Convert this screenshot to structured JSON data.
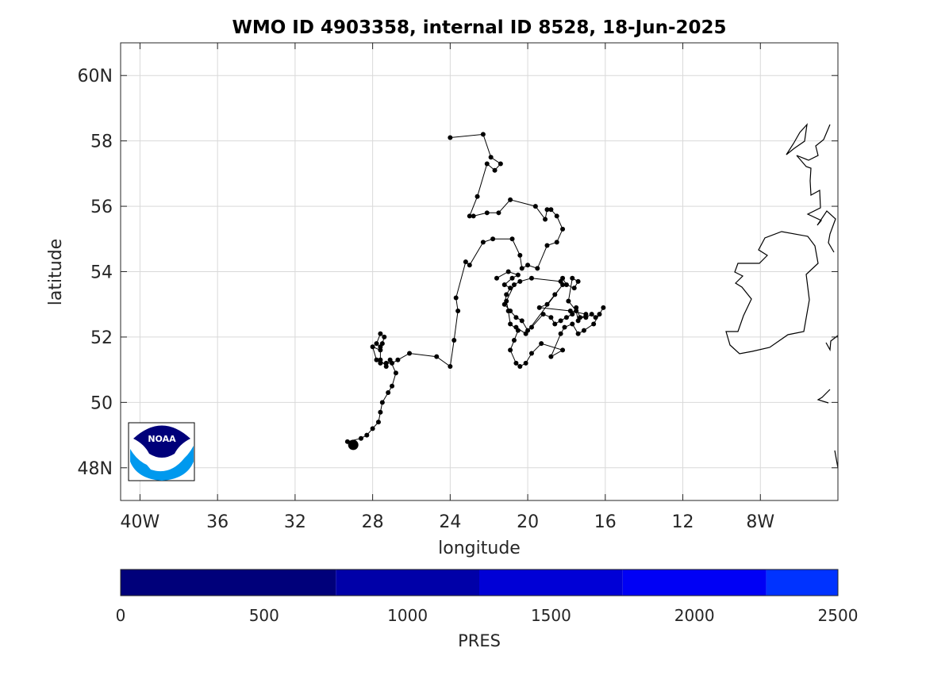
{
  "title": "WMO ID 4903358, internal ID 8528, 18-Jun-2025",
  "map": {
    "xlabel": "longitude",
    "ylabel": "latitude",
    "xlim": [
      -41,
      -4
    ],
    "ylim": [
      47,
      61
    ],
    "x_ticks": [
      -40,
      -36,
      -32,
      -28,
      -24,
      -20,
      -16,
      -12,
      -8
    ],
    "x_tick_labels": [
      "40W",
      "36",
      "32",
      "28",
      "24",
      "20",
      "16",
      "12",
      "8W"
    ],
    "y_ticks": [
      48,
      50,
      52,
      54,
      56,
      58,
      60
    ],
    "y_tick_labels": [
      "48N",
      "50",
      "52",
      "54",
      "56",
      "58",
      "60N"
    ],
    "grid": true,
    "coastline_color": "#000000",
    "track_color": "#000000",
    "start_marker_color": "#000000"
  },
  "chart_data": {
    "type": "scatter",
    "xlabel": "longitude",
    "ylabel": "latitude",
    "xlim": [
      -41,
      -4
    ],
    "ylim": [
      47,
      61
    ],
    "grid": true,
    "track": [
      [
        -29.0,
        48.7
      ],
      [
        -29.3,
        48.8
      ],
      [
        -28.6,
        48.9
      ],
      [
        -28.3,
        49.0
      ],
      [
        -28.0,
        49.2
      ],
      [
        -27.7,
        49.4
      ],
      [
        -27.6,
        49.7
      ],
      [
        -27.5,
        50.0
      ],
      [
        -27.2,
        50.3
      ],
      [
        -27.0,
        50.5
      ],
      [
        -26.8,
        50.9
      ],
      [
        -27.1,
        51.3
      ],
      [
        -27.3,
        51.1
      ],
      [
        -27.6,
        51.3
      ],
      [
        -27.6,
        51.7
      ],
      [
        -27.8,
        51.8
      ],
      [
        -27.6,
        52.1
      ],
      [
        -27.4,
        52.0
      ],
      [
        -27.5,
        51.8
      ],
      [
        -27.6,
        51.6
      ],
      [
        -28.0,
        51.7
      ],
      [
        -27.8,
        51.3
      ],
      [
        -27.6,
        51.2
      ],
      [
        -27.3,
        51.2
      ],
      [
        -27.0,
        51.2
      ],
      [
        -26.7,
        51.3
      ],
      [
        -26.1,
        51.5
      ],
      [
        -24.7,
        51.4
      ],
      [
        -24.0,
        51.1
      ],
      [
        -23.8,
        51.9
      ],
      [
        -23.6,
        52.8
      ],
      [
        -23.7,
        53.2
      ],
      [
        -23.2,
        54.3
      ],
      [
        -23.0,
        54.2
      ],
      [
        -22.3,
        54.9
      ],
      [
        -21.8,
        55.0
      ],
      [
        -20.8,
        55.0
      ],
      [
        -20.4,
        54.5
      ],
      [
        -20.3,
        54.1
      ],
      [
        -20.0,
        54.2
      ],
      [
        -19.5,
        54.1
      ],
      [
        -19.0,
        54.8
      ],
      [
        -18.5,
        54.9
      ],
      [
        -18.2,
        55.3
      ],
      [
        -18.5,
        55.7
      ],
      [
        -18.8,
        55.9
      ],
      [
        -19.0,
        55.9
      ],
      [
        -19.1,
        55.6
      ],
      [
        -19.6,
        56.0
      ],
      [
        -20.9,
        56.2
      ],
      [
        -21.5,
        55.8
      ],
      [
        -22.1,
        55.8
      ],
      [
        -22.8,
        55.7
      ],
      [
        -23.0,
        55.7
      ],
      [
        -22.6,
        56.3
      ],
      [
        -22.1,
        57.3
      ],
      [
        -21.7,
        57.1
      ],
      [
        -21.4,
        57.3
      ],
      [
        -21.9,
        57.5
      ],
      [
        -22.3,
        58.2
      ],
      [
        -24.0,
        58.1
      ]
    ],
    "cluster": [
      [
        -21.6,
        53.8
      ],
      [
        -21.0,
        54.0
      ],
      [
        -20.5,
        53.9
      ],
      [
        -20.8,
        53.8
      ],
      [
        -21.2,
        53.6
      ],
      [
        -20.9,
        53.5
      ],
      [
        -21.1,
        53.3
      ],
      [
        -21.2,
        53.0
      ],
      [
        -20.9,
        52.8
      ],
      [
        -20.6,
        52.6
      ],
      [
        -20.3,
        52.5
      ],
      [
        -20.0,
        52.2
      ],
      [
        -19.8,
        52.3
      ],
      [
        -19.2,
        52.7
      ],
      [
        -18.8,
        52.6
      ],
      [
        -18.6,
        52.4
      ],
      [
        -18.3,
        52.5
      ],
      [
        -18.0,
        52.6
      ],
      [
        -17.7,
        52.7
      ],
      [
        -17.5,
        52.9
      ],
      [
        -17.3,
        52.6
      ],
      [
        -17.0,
        52.6
      ],
      [
        -16.7,
        52.7
      ],
      [
        -16.5,
        52.6
      ],
      [
        -16.3,
        52.7
      ],
      [
        -16.1,
        52.9
      ],
      [
        -16.6,
        52.4
      ],
      [
        -17.1,
        52.2
      ],
      [
        -17.4,
        52.1
      ],
      [
        -17.7,
        52.4
      ],
      [
        -18.1,
        52.3
      ],
      [
        -18.3,
        52.1
      ],
      [
        -18.8,
        51.4
      ],
      [
        -18.2,
        51.6
      ],
      [
        -19.3,
        51.8
      ],
      [
        -19.8,
        51.5
      ],
      [
        -20.1,
        51.2
      ],
      [
        -20.4,
        51.1
      ],
      [
        -20.6,
        51.2
      ],
      [
        -20.9,
        51.6
      ],
      [
        -20.7,
        51.9
      ],
      [
        -20.5,
        52.2
      ],
      [
        -20.9,
        52.4
      ],
      [
        -21.0,
        52.8
      ],
      [
        -21.1,
        53.1
      ],
      [
        -20.7,
        53.6
      ],
      [
        -20.4,
        53.7
      ],
      [
        -19.8,
        53.8
      ],
      [
        -18.3,
        53.7
      ],
      [
        -18.2,
        53.8
      ],
      [
        -18.0,
        53.6
      ],
      [
        -17.6,
        53.5
      ],
      [
        -17.4,
        53.7
      ],
      [
        -17.7,
        53.8
      ],
      [
        -17.9,
        53.1
      ],
      [
        -17.5,
        52.8
      ],
      [
        -17.4,
        52.5
      ],
      [
        -17.0,
        52.7
      ],
      [
        -17.8,
        52.8
      ],
      [
        -19.4,
        52.9
      ],
      [
        -19.0,
        53.0
      ],
      [
        -18.6,
        53.3
      ],
      [
        -18.2,
        53.6
      ],
      [
        -20.1,
        52.1
      ],
      [
        -20.6,
        52.3
      ]
    ],
    "start_position": [
      -29.0,
      48.7
    ],
    "colorbar": {
      "label": "PRES",
      "ticks": [
        0,
        500,
        1000,
        1500,
        2000,
        2500
      ],
      "tick_labels": [
        "0",
        "500",
        "1000",
        "1500",
        "2000",
        "2500"
      ],
      "range": [
        0,
        2500
      ],
      "bands": [
        {
          "from": 0,
          "to": 750,
          "color": "#00007a"
        },
        {
          "from": 750,
          "to": 1250,
          "color": "#0000a8"
        },
        {
          "from": 1250,
          "to": 1750,
          "color": "#0000d6"
        },
        {
          "from": 1750,
          "to": 2250,
          "color": "#0000f5"
        },
        {
          "from": 2250,
          "to": 2500,
          "color": "#0033ff"
        }
      ]
    }
  },
  "logo": {
    "text": "NOAA",
    "top_color": "#00007a",
    "bottom_color": "#0099ee"
  }
}
